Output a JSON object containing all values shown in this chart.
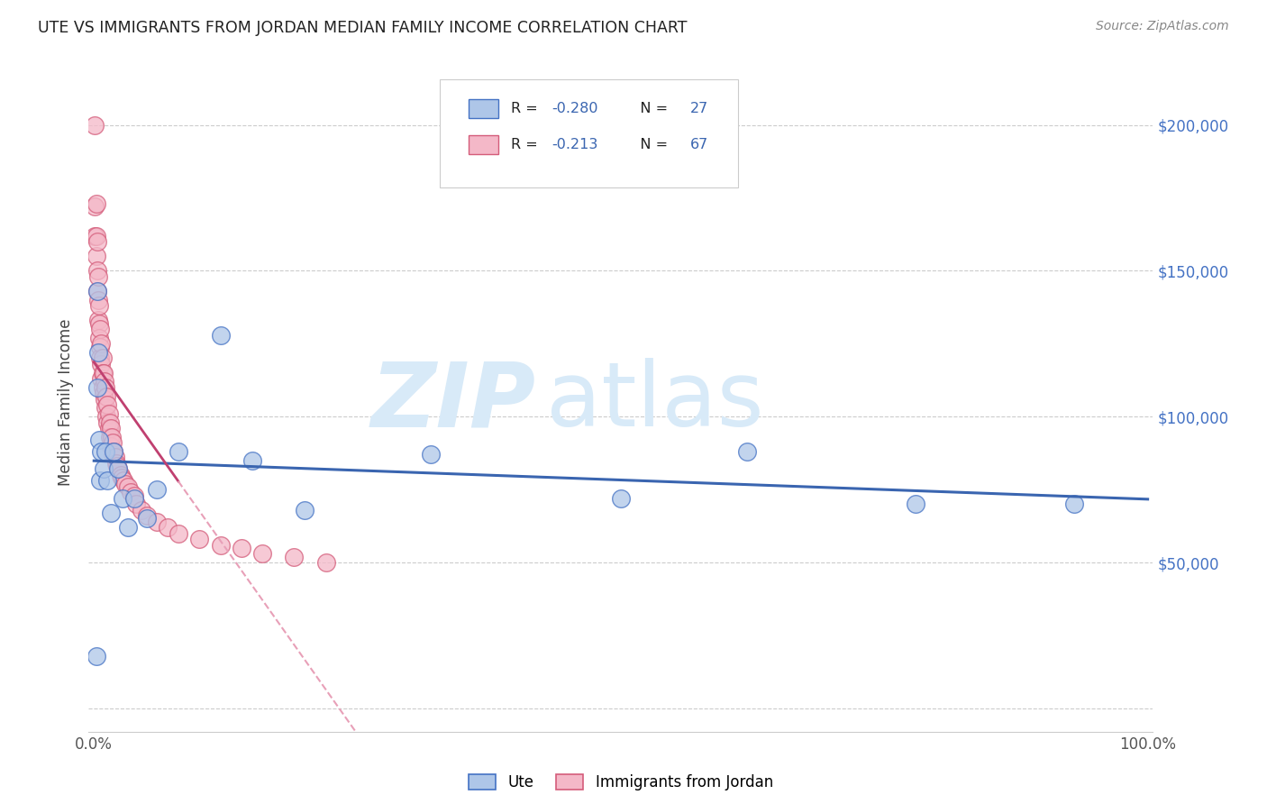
{
  "title": "UTE VS IMMIGRANTS FROM JORDAN MEDIAN FAMILY INCOME CORRELATION CHART",
  "source": "Source: ZipAtlas.com",
  "ylabel": "Median Family Income",
  "watermark_zip": "ZIP",
  "watermark_atlas": "atlas",
  "legend_ute_R": "-0.280",
  "legend_ute_N": "27",
  "legend_jordan_R": "-0.213",
  "legend_jordan_N": "67",
  "ytick_positions": [
    0,
    50000,
    100000,
    150000,
    200000
  ],
  "ytick_labels": [
    "",
    "$50,000",
    "$100,000",
    "$150,000",
    "$200,000"
  ],
  "xlim": [
    -0.005,
    1.005
  ],
  "ylim": [
    -8000,
    218000
  ],
  "ute_fill_color": "#aec6e8",
  "ute_edge_color": "#4472c4",
  "jordan_fill_color": "#f4b8c8",
  "jordan_edge_color": "#d45c7a",
  "ute_line_color": "#3a65b0",
  "jordan_solid_color": "#c04070",
  "jordan_dash_color": "#e8a0b8",
  "grid_color": "#cccccc",
  "title_color": "#222222",
  "source_color": "#888888",
  "ylabel_color": "#444444",
  "xtick_color": "#555555",
  "ytick_right_color": "#4472c4",
  "legend_border_color": "#cccccc",
  "watermark_color": "#d8eaf8",
  "ute_scatter_x": [
    0.002,
    0.003,
    0.003,
    0.004,
    0.005,
    0.006,
    0.007,
    0.009,
    0.011,
    0.013,
    0.016,
    0.019,
    0.023,
    0.027,
    0.032,
    0.038,
    0.05,
    0.06,
    0.08,
    0.12,
    0.15,
    0.2,
    0.32,
    0.5,
    0.62,
    0.78,
    0.93
  ],
  "ute_scatter_y": [
    18000,
    143000,
    110000,
    122000,
    92000,
    78000,
    88000,
    82000,
    88000,
    78000,
    67000,
    88000,
    82000,
    72000,
    62000,
    72000,
    65000,
    75000,
    88000,
    128000,
    85000,
    68000,
    87000,
    72000,
    88000,
    70000,
    70000
  ],
  "jordan_scatter_x": [
    0.001,
    0.001,
    0.001,
    0.002,
    0.002,
    0.002,
    0.003,
    0.003,
    0.003,
    0.004,
    0.004,
    0.004,
    0.005,
    0.005,
    0.005,
    0.006,
    0.006,
    0.006,
    0.007,
    0.007,
    0.007,
    0.008,
    0.008,
    0.008,
    0.009,
    0.009,
    0.01,
    0.01,
    0.011,
    0.011,
    0.012,
    0.012,
    0.013,
    0.013,
    0.014,
    0.014,
    0.015,
    0.015,
    0.016,
    0.016,
    0.017,
    0.018,
    0.018,
    0.019,
    0.02,
    0.021,
    0.022,
    0.023,
    0.025,
    0.026,
    0.028,
    0.03,
    0.032,
    0.035,
    0.038,
    0.04,
    0.045,
    0.05,
    0.06,
    0.07,
    0.08,
    0.1,
    0.12,
    0.14,
    0.16,
    0.19,
    0.22
  ],
  "jordan_scatter_y": [
    200000,
    172000,
    162000,
    173000,
    162000,
    155000,
    160000,
    150000,
    143000,
    148000,
    140000,
    133000,
    138000,
    132000,
    127000,
    130000,
    124000,
    120000,
    125000,
    118000,
    113000,
    120000,
    115000,
    110000,
    115000,
    108000,
    112000,
    106000,
    110000,
    103000,
    107000,
    100000,
    104000,
    98000,
    101000,
    96000,
    98000,
    93000,
    96000,
    90000,
    93000,
    91000,
    87000,
    88000,
    86000,
    84000,
    83000,
    82000,
    80000,
    79000,
    78000,
    77000,
    76000,
    74000,
    73000,
    70000,
    68000,
    66000,
    64000,
    62000,
    60000,
    58000,
    56000,
    55000,
    53000,
    52000,
    50000
  ]
}
